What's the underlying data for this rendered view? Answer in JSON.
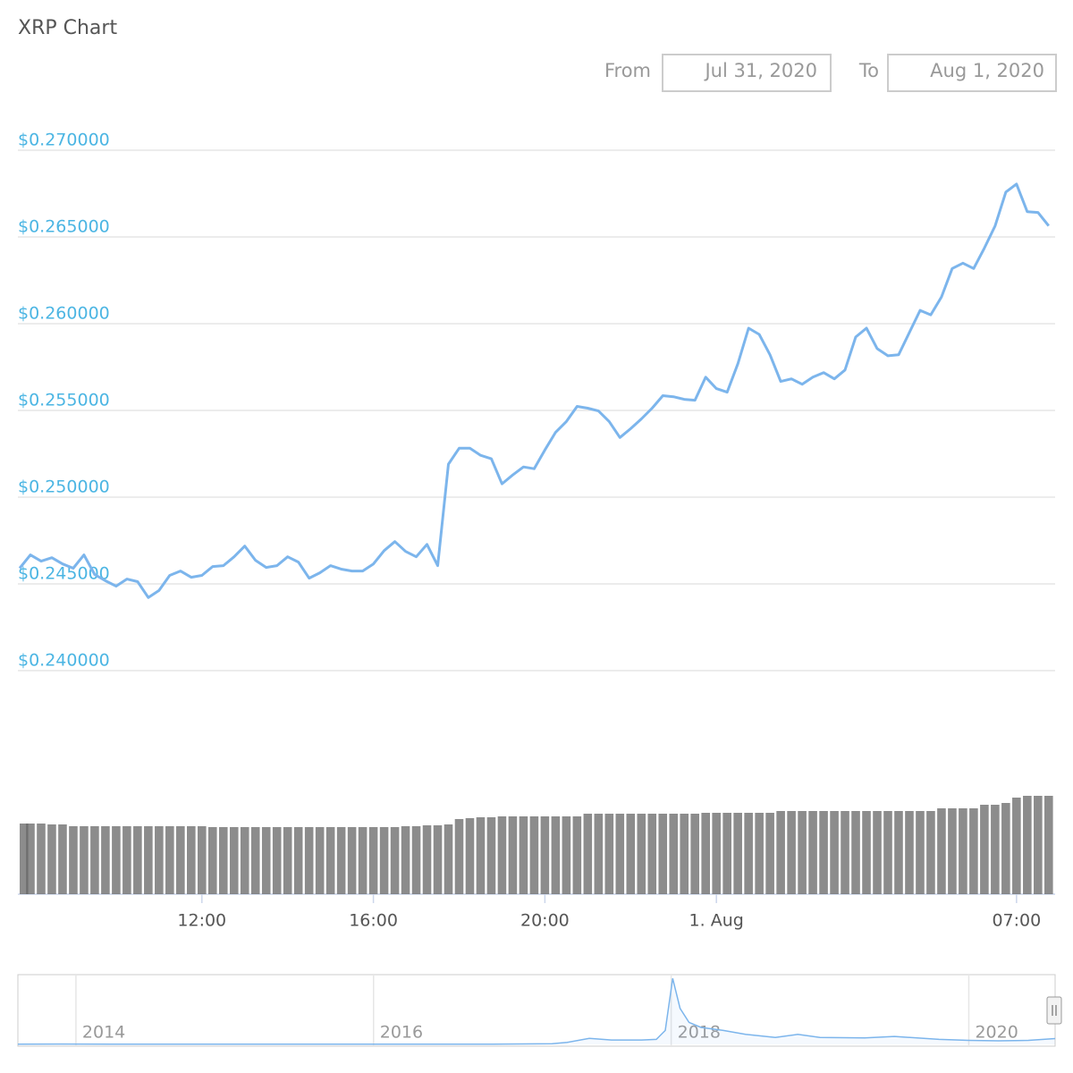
{
  "chart_data": {
    "type": "line",
    "title": "XRP Chart",
    "from_label": "From",
    "from_date": "Jul 31, 2020",
    "to_label": "To",
    "to_date": "Aug 1, 2020",
    "x": [
      7.75,
      8,
      8.25,
      8.5,
      8.75,
      9,
      9.25,
      9.5,
      9.75,
      10,
      10.25,
      10.5,
      10.75,
      11,
      11.25,
      11.5,
      11.75,
      12,
      12.25,
      12.5,
      12.75,
      13,
      13.25,
      13.5,
      13.75,
      14,
      14.25,
      14.5,
      14.75,
      15,
      15.25,
      15.5,
      15.75,
      16,
      16.25,
      16.5,
      16.75,
      17,
      17.25,
      17.5,
      17.75,
      18,
      18.25,
      18.5,
      18.75,
      19,
      19.25,
      19.5,
      19.75,
      20,
      20.25,
      20.5,
      20.75,
      21,
      21.25,
      21.5,
      21.75,
      22,
      22.25,
      22.5,
      22.75,
      23,
      23.25,
      23.5,
      23.75,
      24,
      24.25,
      24.5,
      24.75,
      25,
      25.25,
      25.5,
      25.75,
      26,
      26.25,
      26.5,
      26.75,
      27,
      27.25,
      27.5,
      27.75,
      28,
      28.25,
      28.5,
      28.75,
      29,
      29.25,
      29.5,
      29.75,
      30,
      30.25,
      30.5,
      30.75,
      31,
      31.25,
      31.5,
      31.75
    ],
    "xlim": [
      7.75,
      31.9
    ],
    "xticks": [
      {
        "value": 12,
        "label": "12:00"
      },
      {
        "value": 16,
        "label": "16:00"
      },
      {
        "value": 20,
        "label": "20:00"
      },
      {
        "value": 24,
        "label": "1. Aug"
      },
      {
        "value": 31,
        "label": "07:00"
      }
    ],
    "series": [
      {
        "color": "#7cb5ec",
        "values": [
          0.2459,
          0.24667,
          0.24631,
          0.24651,
          0.24615,
          0.2459,
          0.24667,
          0.24554,
          0.24518,
          0.24487,
          0.24528,
          0.24513,
          0.24421,
          0.24462,
          0.24549,
          0.24574,
          0.24538,
          0.24549,
          0.246,
          0.24605,
          0.24656,
          0.24718,
          0.24636,
          0.24595,
          0.24605,
          0.24656,
          0.24626,
          0.24533,
          0.24564,
          0.24605,
          0.24585,
          0.24574,
          0.24574,
          0.24615,
          0.24692,
          0.24744,
          0.24687,
          0.24656,
          0.24728,
          0.24605,
          0.2519,
          0.25282,
          0.25282,
          0.25241,
          0.25221,
          0.25077,
          0.25128,
          0.25174,
          0.25164,
          0.25272,
          0.25374,
          0.25436,
          0.25523,
          0.25513,
          0.25497,
          0.25436,
          0.25344,
          0.25395,
          0.25451,
          0.25513,
          0.25585,
          0.25579,
          0.25564,
          0.25559,
          0.25692,
          0.25626,
          0.25605,
          0.25769,
          0.25974,
          0.25938,
          0.25821,
          0.25667,
          0.25682,
          0.25651,
          0.25692,
          0.25718,
          0.25682,
          0.25733,
          0.25923,
          0.25974,
          0.25856,
          0.25815,
          0.25821,
          0.25949,
          0.26077,
          0.26051,
          0.26154,
          0.26318,
          0.26349,
          0.26318,
          0.26436,
          0.26564,
          0.26759,
          0.26805,
          0.26646,
          0.26641,
          0.26564
        ]
      }
    ],
    "ylim": [
      0.24,
      0.27
    ],
    "yticks": [
      {
        "value": 0.24,
        "label": "$0.240000"
      },
      {
        "value": 0.245,
        "label": "$0.245000"
      },
      {
        "value": 0.25,
        "label": "$0.250000"
      },
      {
        "value": 0.255,
        "label": "$0.255000"
      },
      {
        "value": 0.26,
        "label": "$0.260000"
      },
      {
        "value": 0.265,
        "label": "$0.265000"
      },
      {
        "value": 0.27,
        "label": "$0.270000"
      }
    ],
    "grid": true,
    "volume": {
      "color": "#666666",
      "ylim": [
        0,
        115
      ],
      "values": [
        79,
        79,
        79,
        78,
        78,
        76,
        76,
        76,
        76,
        76,
        76,
        76,
        76,
        76,
        76,
        76,
        76,
        76,
        75,
        75,
        75,
        75,
        75,
        75,
        75,
        75,
        75,
        75,
        75,
        75,
        75,
        75,
        75,
        75,
        75,
        75,
        76,
        76,
        77,
        77,
        78,
        84,
        85,
        86,
        86,
        87,
        87,
        87,
        87,
        87,
        87,
        87,
        87,
        90,
        90,
        90,
        90,
        90,
        90,
        90,
        90,
        90,
        90,
        90,
        91,
        91,
        91,
        91,
        91,
        91,
        91,
        93,
        93,
        93,
        93,
        93,
        93,
        93,
        93,
        93,
        93,
        93,
        93,
        93,
        93,
        93,
        96,
        96,
        96,
        96,
        100,
        100,
        102,
        108,
        110,
        110,
        110
      ]
    },
    "navigator": {
      "color": "#7cb5ec",
      "xlim": [
        2013.61,
        2020.58
      ],
      "ylim": [
        0,
        3.4
      ],
      "xticks": [
        2014,
        2016,
        2018,
        2020
      ],
      "x": [
        2013.61,
        2013.9,
        2014.3,
        2014.8,
        2015.3,
        2015.8,
        2016.3,
        2016.8,
        2017.2,
        2017.3,
        2017.45,
        2017.6,
        2017.8,
        2017.9,
        2017.96,
        2018.01,
        2018.06,
        2018.12,
        2018.2,
        2018.35,
        2018.5,
        2018.7,
        2018.85,
        2019.0,
        2019.3,
        2019.5,
        2019.8,
        2020.0,
        2020.2,
        2020.4,
        2020.58
      ],
      "values": [
        0.01,
        0.02,
        0.01,
        0.01,
        0.01,
        0.007,
        0.007,
        0.007,
        0.03,
        0.1,
        0.3,
        0.22,
        0.22,
        0.25,
        0.7,
        3.3,
        1.8,
        1.1,
        0.85,
        0.7,
        0.5,
        0.35,
        0.5,
        0.35,
        0.32,
        0.4,
        0.25,
        0.2,
        0.18,
        0.2,
        0.29
      ]
    }
  }
}
